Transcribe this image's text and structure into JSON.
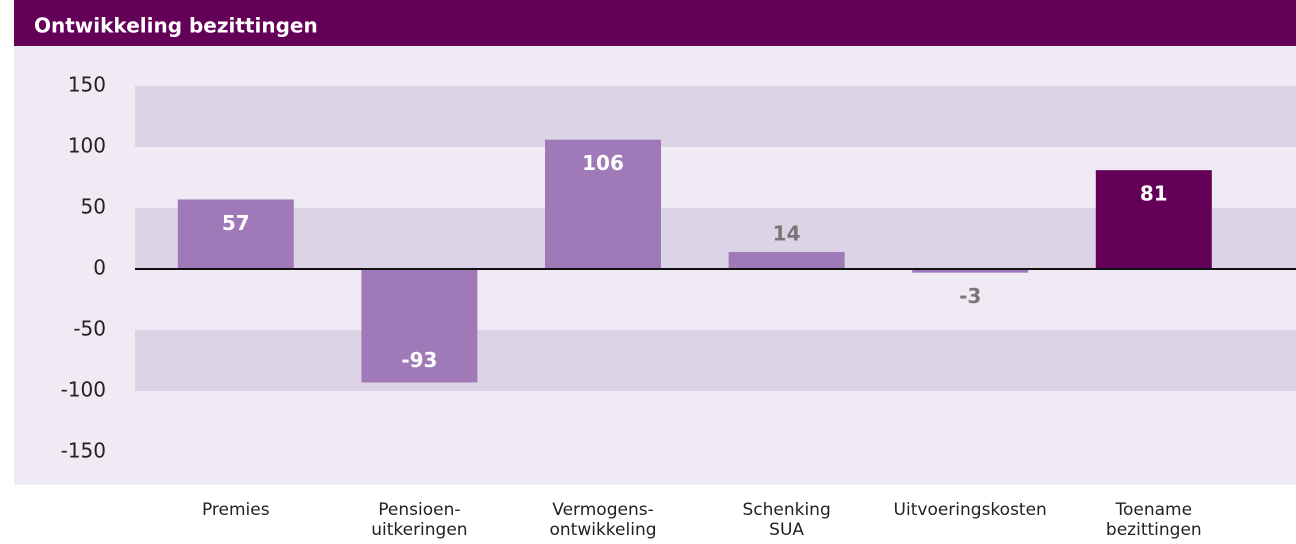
{
  "chart_data": {
    "type": "bar",
    "title": "Ontwikkeling bezittingen",
    "categories": [
      [
        "Premies"
      ],
      [
        "Pensioen-",
        "uitkeringen"
      ],
      [
        "Vermogens-",
        "ontwikkeling"
      ],
      [
        "Schenking",
        "SUA"
      ],
      [
        "Uitvoeringskosten"
      ],
      [
        "Toename",
        "bezittingen"
      ]
    ],
    "values": [
      57,
      -93,
      106,
      14,
      -3,
      81
    ],
    "colors": [
      "#a07ab8",
      "#a07ab8",
      "#a07ab8",
      "#a07ab8",
      "#a07ab8",
      "#640058"
    ],
    "ylim": [
      -150,
      150
    ],
    "yticks": [
      -150,
      -100,
      -50,
      0,
      50,
      100,
      150
    ],
    "grid": true
  }
}
